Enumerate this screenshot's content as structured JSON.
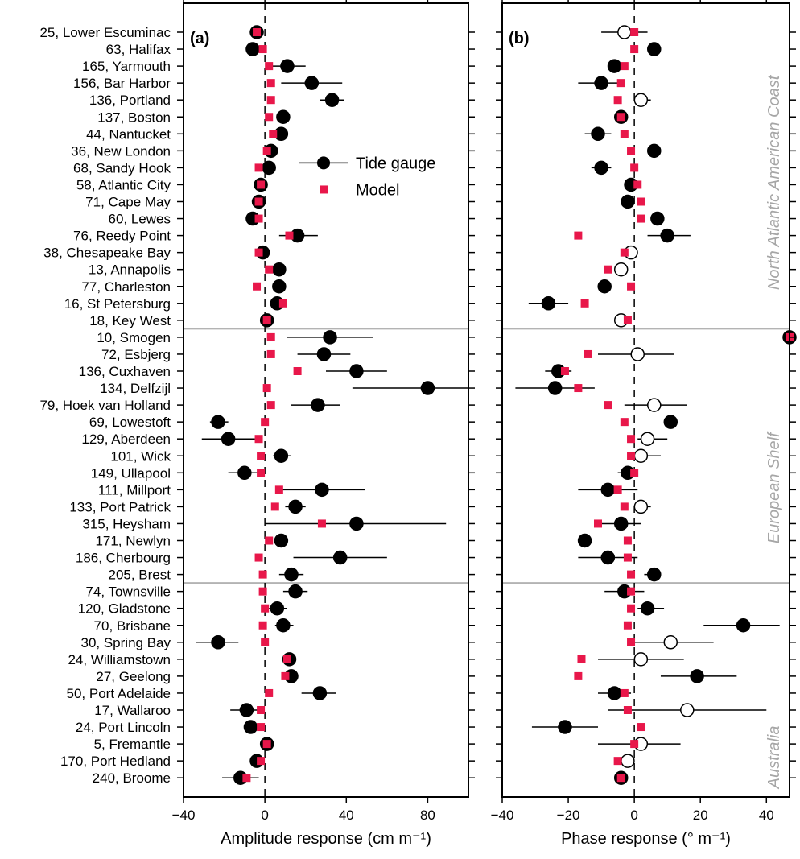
{
  "chart_data": [
    {
      "type": "scatter",
      "panel_label": "(a)",
      "xlabel": "Amplitude response (cm m⁻¹)",
      "xlim": [
        -40,
        100
      ],
      "xticks": [
        -40,
        0,
        40,
        80
      ],
      "reference_line_x": 0,
      "legend": {
        "entries": [
          "Tide gauge",
          "Model"
        ],
        "position": "upper-right"
      },
      "stations": [
        "25, Lower Escuminac",
        "63, Halifax",
        "165, Yarmouth",
        "156, Bar Harbor",
        "136, Portland",
        "137, Boston",
        "44, Nantucket",
        "36, New London",
        "68, Sandy Hook",
        "58, Atlantic City",
        "71, Cape May",
        "60, Lewes",
        "76, Reedy Point",
        "38, Chesapeake Bay",
        "13, Annapolis",
        "77, Charleston",
        "16, St Petersburg",
        "18, Key West",
        "10, Smogen",
        "72, Esbjerg",
        "136, Cuxhaven",
        "134, Delfzijl",
        "79, Hoek van Holland",
        "69, Lowestoft",
        "129, Aberdeen",
        "101, Wick",
        "149, Ullapool",
        "111, Millport",
        "133, Port Patrick",
        "315, Heysham",
        "171, Newlyn",
        "186, Cherbourg",
        "205, Brest",
        "74, Townsville",
        "120, Gladstone",
        "70, Brisbane",
        "30, Spring Bay",
        "24, Williamstown",
        "27, Geelong",
        "50, Port Adelaide",
        "17, Wallaroo",
        "24, Port Lincoln",
        "5, Fremantle",
        "170, Port Hedland",
        "240, Broome"
      ],
      "series": [
        {
          "name": "Tide gauge",
          "values": [
            -4,
            -6,
            11,
            23,
            33,
            9,
            8,
            3,
            2,
            -2,
            -3,
            -6,
            16,
            -1,
            7,
            7,
            6,
            1,
            32,
            29,
            45,
            80,
            26,
            -23,
            -18,
            8,
            -10,
            28,
            15,
            45,
            8,
            37,
            13,
            15,
            6,
            9,
            -23,
            12,
            13,
            27,
            -9,
            -7,
            1,
            -4,
            -12
          ],
          "err_lo": [
            -5,
            -7,
            3,
            8,
            27,
            9,
            8,
            3,
            2,
            -2,
            -3,
            -6,
            7,
            -1,
            7,
            7,
            6,
            1,
            11,
            16,
            30,
            43,
            13,
            -27,
            -31,
            4,
            -18,
            8,
            10,
            0,
            8,
            14,
            7,
            9,
            2,
            5,
            -34,
            10,
            10,
            18,
            -17,
            -10,
            0,
            -6,
            -21
          ],
          "err_hi": [
            -3,
            -5,
            20,
            38,
            39,
            9,
            8,
            3,
            2,
            -2,
            -3,
            -6,
            26,
            -1,
            7,
            7,
            6,
            1,
            53,
            42,
            60,
            100,
            37,
            -18,
            -5,
            13,
            -2,
            49,
            20,
            89,
            8,
            60,
            19,
            21,
            11,
            14,
            -13,
            14,
            16,
            35,
            -2,
            -4,
            2,
            -2,
            -3
          ]
        },
        {
          "name": "Model",
          "values": [
            -4,
            -1,
            2,
            3,
            3,
            2,
            4,
            1,
            -3,
            -2,
            -3,
            -3,
            12,
            -3,
            2,
            -4,
            9,
            1,
            3,
            3,
            16,
            1,
            3,
            0,
            -3,
            -2,
            -2,
            7,
            5,
            28,
            2,
            -3,
            -1,
            -1,
            0,
            -1,
            0,
            11,
            10,
            2,
            -2,
            -2,
            1,
            -2,
            -9
          ]
        }
      ]
    },
    {
      "type": "scatter",
      "panel_label": "(b)",
      "xlabel": "Phase response (° m⁻¹)",
      "xlim": [
        -40,
        47
      ],
      "xticks": [
        -40,
        -20,
        0,
        20,
        40
      ],
      "reference_line_x": 0,
      "region_labels": [
        "North Atlantic American Coast",
        "European Shelf",
        "Australia"
      ],
      "series": [
        {
          "name": "Tide gauge",
          "values": [
            -3,
            6,
            -6,
            -10,
            2,
            -4,
            -11,
            6,
            -10,
            -1,
            -2,
            7,
            10,
            -1,
            -4,
            -9,
            -26,
            -4,
            48,
            1,
            -23,
            -24,
            6,
            11,
            4,
            2,
            -2,
            -8,
            2,
            -4,
            -15,
            -8,
            6,
            -3,
            4,
            33,
            11,
            2,
            19,
            -6,
            16,
            -21,
            2,
            -2,
            -4
          ],
          "open": [
            true,
            false,
            false,
            false,
            true,
            false,
            false,
            false,
            false,
            false,
            false,
            false,
            false,
            true,
            true,
            false,
            false,
            true,
            false,
            true,
            false,
            false,
            true,
            false,
            true,
            true,
            false,
            false,
            true,
            false,
            false,
            false,
            false,
            false,
            false,
            false,
            true,
            true,
            false,
            false,
            true,
            false,
            true,
            true,
            false
          ],
          "err_lo": [
            -10,
            6,
            -8,
            -17,
            0,
            -4,
            -15,
            6,
            -13,
            -1,
            -2,
            5,
            4,
            -1,
            -4,
            -10,
            -32,
            -6,
            48,
            -11,
            -27,
            -36,
            -3,
            9,
            1,
            -1,
            -5,
            -17,
            0,
            -11,
            -17,
            -17,
            3,
            -9,
            1,
            21,
            0,
            -11,
            8,
            -11,
            -8,
            -31,
            -11,
            -3,
            -6
          ],
          "err_hi": [
            4,
            8,
            -3,
            -5,
            5,
            -4,
            -7,
            6,
            -7,
            -1,
            -2,
            9,
            17,
            -1,
            -4,
            -8,
            -20,
            -1,
            48,
            12,
            -19,
            -12,
            16,
            13,
            10,
            8,
            1,
            1,
            5,
            2,
            -13,
            1,
            8,
            3,
            9,
            44,
            24,
            15,
            31,
            -1,
            40,
            -11,
            14,
            -1,
            -2
          ]
        },
        {
          "name": "Model",
          "values": [
            0,
            0,
            -3,
            -4,
            -5,
            -4,
            -3,
            -1,
            0,
            1,
            2,
            2,
            -17,
            -3,
            -8,
            -1,
            -15,
            -2,
            48,
            -14,
            -21,
            -17,
            -8,
            -3,
            -1,
            -1,
            0,
            -5,
            -3,
            -11,
            -2,
            -2,
            -1,
            -1,
            -1,
            -2,
            -1,
            -16,
            -17,
            -3,
            -2,
            2,
            0,
            -5,
            -4
          ]
        }
      ]
    }
  ]
}
